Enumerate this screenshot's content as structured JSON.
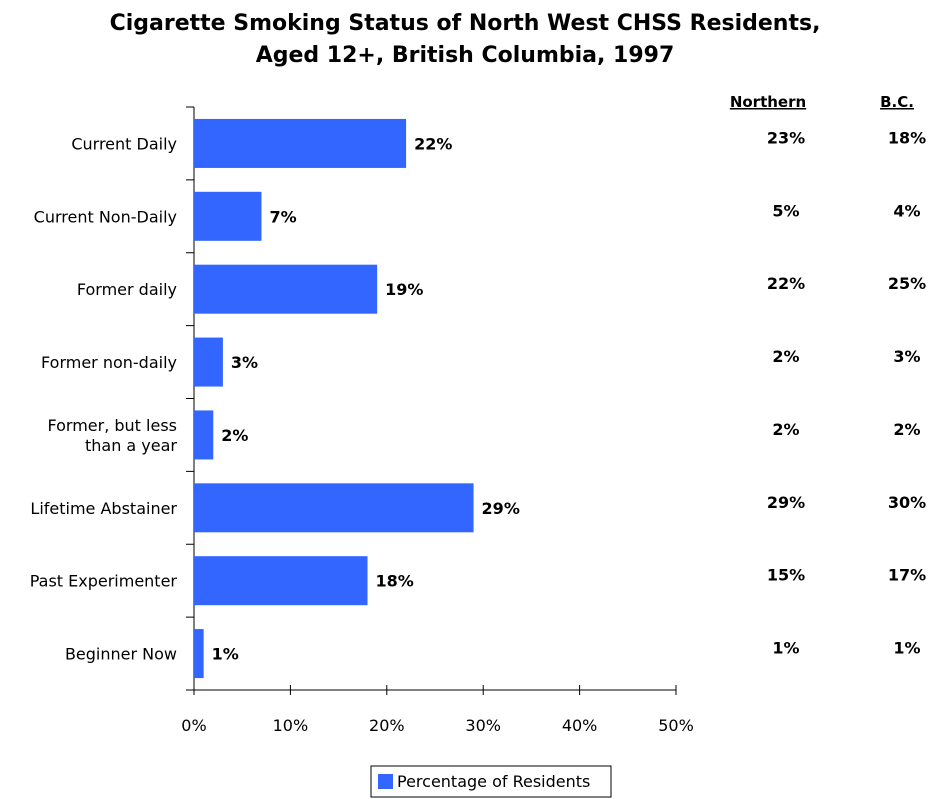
{
  "chart_data": {
    "type": "bar",
    "orientation": "horizontal",
    "title": "Cigarette Smoking Status of North West CHSS Residents,",
    "subtitle": "Aged 12+, British Columbia, 1997",
    "categories": [
      [
        "Current Daily"
      ],
      [
        "Current Non-Daily"
      ],
      [
        "Former daily"
      ],
      [
        "Former non-daily"
      ],
      [
        "Former, but less",
        "than a year"
      ],
      [
        "Lifetime Abstainer"
      ],
      [
        "Past Experimenter"
      ],
      [
        "Beginner Now"
      ]
    ],
    "series": [
      {
        "name": "Percentage of Residents",
        "values": [
          22,
          7,
          19,
          3,
          2,
          29,
          18,
          1
        ],
        "labels": [
          "22%",
          "7%",
          "19%",
          "3%",
          "2%",
          "29%",
          "18%",
          "1%"
        ]
      }
    ],
    "xlim": [
      0,
      50
    ],
    "xticks": [
      "0%",
      "10%",
      "20%",
      "30%",
      "40%",
      "50%"
    ],
    "bar_color": "#3366FF",
    "grid": false,
    "legend_position": "bottom",
    "comparison": {
      "headers": [
        "Northern",
        "B.C."
      ],
      "northern": [
        "23%",
        "5%",
        "22%",
        "2%",
        "2%",
        "29%",
        "15%",
        "1%"
      ],
      "bc": [
        "18%",
        "4%",
        "25%",
        "3%",
        "2%",
        "30%",
        "17%",
        "1%"
      ]
    }
  }
}
